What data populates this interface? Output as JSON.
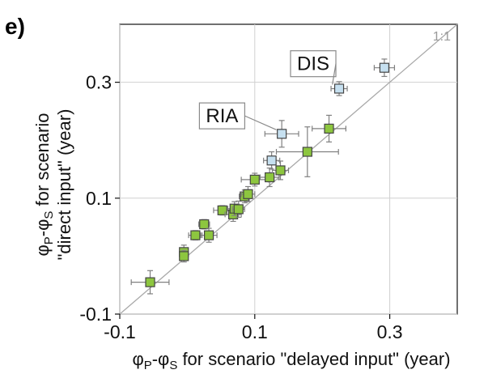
{
  "panel_label": "e)",
  "colors": {
    "green": "#8dc63f",
    "blue": "#c6e0f0",
    "errorbar": "#808080",
    "gridline": "#d0d0d0",
    "oneToOne": "#a9a9a9"
  },
  "chart_data": {
    "type": "scatter",
    "title": "",
    "xlabel": {
      "pre": "φ",
      "sub1": "P",
      "mid": "-φ",
      "sub2": "S",
      "post": " for scenario \"delayed input\" (year)"
    },
    "ylabel": {
      "line1_pre": "φ",
      "line1_sub1": "P",
      "line1_mid": "-φ",
      "line1_sub2": "S",
      "line1_post": " for scenario",
      "line2": "\"direct input\" (year)"
    },
    "xlim": [
      -0.1,
      0.4
    ],
    "ylim": [
      -0.1,
      0.4
    ],
    "xticks": [
      -0.1,
      0.1,
      0.3
    ],
    "yticks": [
      -0.1,
      0.1,
      0.3
    ],
    "xtick_labels": [
      "-0.1",
      "0.1",
      "0.3"
    ],
    "ytick_labels": [
      "-0.1",
      "0.1",
      "0.3"
    ],
    "grid": true,
    "reference_line": {
      "label": "1:1"
    },
    "series": [
      {
        "color": "green",
        "points": [
          {
            "x": -0.055,
            "y": -0.045,
            "xerr": 0.028,
            "yerr": 0.02
          },
          {
            "x": -0.005,
            "y": 0.007,
            "xerr": 0.004,
            "yerr": 0.012
          },
          {
            "x": -0.005,
            "y": 0.0,
            "xerr": 0.004,
            "yerr": 0.01
          },
          {
            "x": 0.012,
            "y": 0.036,
            "xerr": 0.01,
            "yerr": 0.008
          },
          {
            "x": 0.025,
            "y": 0.055,
            "xerr": 0.008,
            "yerr": 0.008
          },
          {
            "x": 0.032,
            "y": 0.036,
            "xerr": 0.012,
            "yerr": 0.012
          },
          {
            "x": 0.052,
            "y": 0.079,
            "xerr": 0.013,
            "yerr": 0.008
          },
          {
            "x": 0.068,
            "y": 0.072,
            "xerr": 0.012,
            "yerr": 0.012
          },
          {
            "x": 0.07,
            "y": 0.082,
            "xerr": 0.01,
            "yerr": 0.012
          },
          {
            "x": 0.076,
            "y": 0.081,
            "xerr": 0.009,
            "yerr": 0.014
          },
          {
            "x": 0.085,
            "y": 0.103,
            "xerr": 0.008,
            "yerr": 0.011
          },
          {
            "x": 0.09,
            "y": 0.107,
            "xerr": 0.01,
            "yerr": 0.013
          },
          {
            "x": 0.1,
            "y": 0.132,
            "xerr": 0.02,
            "yerr": 0.011
          },
          {
            "x": 0.122,
            "y": 0.136,
            "xerr": 0.014,
            "yerr": 0.016
          },
          {
            "x": 0.138,
            "y": 0.148,
            "xerr": 0.012,
            "yerr": 0.016
          },
          {
            "x": 0.178,
            "y": 0.18,
            "xerr": 0.046,
            "yerr": 0.043
          },
          {
            "x": 0.21,
            "y": 0.22,
            "xerr": 0.025,
            "yerr": 0.023
          }
        ]
      },
      {
        "color": "blue",
        "points": [
          {
            "x": 0.14,
            "y": 0.211,
            "xerr": 0.025,
            "yerr": 0.023
          },
          {
            "x": 0.125,
            "y": 0.165,
            "xerr": 0.012,
            "yerr": 0.015
          },
          {
            "x": 0.225,
            "y": 0.289,
            "xerr": 0.012,
            "yerr": 0.012
          },
          {
            "x": 0.292,
            "y": 0.325,
            "xerr": 0.015,
            "yerr": 0.015
          }
        ]
      }
    ],
    "annotations": [
      {
        "text": "RIA",
        "x": 0.018,
        "y": 0.242,
        "target_x": 0.132,
        "target_y": 0.218
      },
      {
        "text": "DIS",
        "x": 0.153,
        "y": 0.332,
        "target_x": 0.215,
        "target_y": 0.296
      }
    ]
  }
}
